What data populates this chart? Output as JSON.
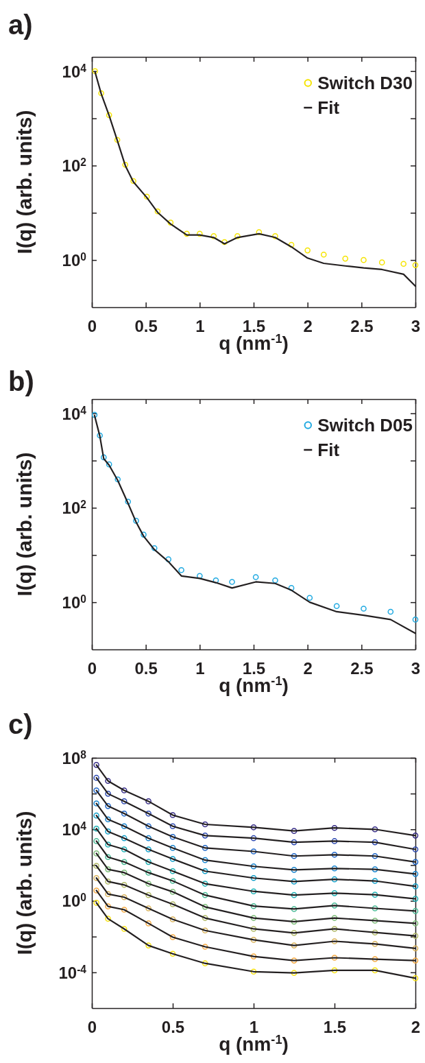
{
  "chart_data": [
    {
      "type": "scatter",
      "title": "a)",
      "xlabel": "q (nm$^{-1}$)",
      "ylabel": "I(q) (arb. units)",
      "log": "y",
      "legend": "top right",
      "marker": "circle",
      "xlim": [
        0,
        3
      ],
      "xticks": [
        0,
        0.5,
        1,
        1.5,
        2,
        2.5,
        3
      ],
      "ylim": [
        0.1,
        20000
      ],
      "yticks": [
        {
          "value": 1,
          "label": "10$^{0}$"
        },
        {
          "value": 10,
          "label": null
        },
        {
          "value": 100,
          "label": "10$^{2}$"
        },
        {
          "value": 1000,
          "label": null
        },
        {
          "value": 10000,
          "label": "10$^{4}$"
        }
      ],
      "series": [
        {
          "name": "Switch D30",
          "color": "#f5e400",
          "x": [
            0.03,
            0.087,
            0.16,
            0.236,
            0.31,
            0.385,
            0.51,
            0.61,
            0.73,
            0.88,
            1.0,
            1.13,
            1.23,
            1.35,
            1.55,
            1.7,
            1.85,
            2.0,
            2.15,
            2.35,
            2.52,
            2.69,
            2.89,
            3.0
          ],
          "values": [
            10000,
            3400,
            1170,
            350,
            104,
            47,
            22,
            10.7,
            6.2,
            3.6,
            3.6,
            3.2,
            2.4,
            3.2,
            3.9,
            3.2,
            2.1,
            1.6,
            1.3,
            1.07,
            1.0,
            0.89,
            0.83,
            0.78
          ]
        },
        {
          "name": "Fit",
          "type": "line",
          "marker": "none",
          "color": "#231f20",
          "x": [
            0.03,
            0.087,
            0.16,
            0.236,
            0.31,
            0.385,
            0.51,
            0.61,
            0.73,
            0.88,
            1.0,
            1.13,
            1.23,
            1.35,
            1.55,
            1.7,
            1.85,
            2.0,
            2.15,
            2.35,
            2.52,
            2.69,
            2.89,
            3.0
          ],
          "values": [
            9500,
            3300,
            1150,
            340,
            100,
            45,
            21,
            10.2,
            5.8,
            3.4,
            3.4,
            3.0,
            2.2,
            3.0,
            3.6,
            3.0,
            1.9,
            1.1,
            0.85,
            0.75,
            0.68,
            0.63,
            0.5,
            0.28
          ]
        }
      ]
    },
    {
      "type": "scatter",
      "title": "b)",
      "xlabel": "q (nm$^{-1}$)",
      "ylabel": "I(q) (arb. units)",
      "log": "y",
      "legend": "top right",
      "marker": "circle",
      "xlim": [
        0,
        3
      ],
      "xticks": [
        0,
        0.5,
        1,
        1.5,
        2,
        2.5,
        3
      ],
      "ylim": [
        0.1,
        20000
      ],
      "yticks": [
        {
          "value": 1,
          "label": "10$^{0}$"
        },
        {
          "value": 10,
          "label": null
        },
        {
          "value": 100,
          "label": "10$^{2}$"
        },
        {
          "value": 1000,
          "label": null
        },
        {
          "value": 10000,
          "label": "10$^{4}$"
        }
      ],
      "series": [
        {
          "name": "Switch D05",
          "color": "#1fa9e1",
          "x": [
            0.025,
            0.074,
            0.11,
            0.16,
            0.24,
            0.335,
            0.41,
            0.48,
            0.58,
            0.71,
            0.83,
            1.0,
            1.15,
            1.3,
            1.52,
            1.7,
            1.85,
            2.02,
            2.27,
            2.52,
            2.77,
            3.0
          ],
          "values": [
            9300,
            3400,
            1170,
            830,
            400,
            135,
            53,
            27,
            14,
            8.1,
            4.8,
            3.6,
            2.9,
            2.7,
            3.4,
            2.9,
            2.0,
            1.24,
            0.83,
            0.73,
            0.63,
            0.43
          ]
        },
        {
          "name": "Fit",
          "type": "line",
          "marker": "none",
          "color": "#231f20",
          "x": [
            0.025,
            0.074,
            0.11,
            0.16,
            0.24,
            0.335,
            0.41,
            0.48,
            0.58,
            0.71,
            0.83,
            1.0,
            1.15,
            1.3,
            1.52,
            1.7,
            1.85,
            2.02,
            2.27,
            2.52,
            2.77,
            3.0
          ],
          "values": [
            9000,
            3300,
            1100,
            800,
            380,
            125,
            50,
            25,
            13,
            7.2,
            3.6,
            3.2,
            2.6,
            2.0,
            2.7,
            2.5,
            1.8,
            1.0,
            0.63,
            0.53,
            0.43,
            0.22
          ]
        }
      ]
    },
    {
      "type": "scatter",
      "title": "c)",
      "xlabel": "q (nm$^{-1}$)",
      "ylabel": "I(q) (arb. units)",
      "log": "y",
      "marker": "circle",
      "xlim": [
        0,
        2
      ],
      "xticks": [
        0,
        0.5,
        1,
        1.5,
        2
      ],
      "ylim": [
        1e-06,
        100000000
      ],
      "yticks": [
        {
          "value": 0.0001,
          "label": "10$^{-4}$"
        },
        {
          "value": 0.01,
          "label": null
        },
        {
          "value": 1,
          "label": "10$^{0}$"
        },
        {
          "value": 100,
          "label": null
        },
        {
          "value": 10000,
          "label": "10$^{4}$"
        },
        {
          "value": 1000000,
          "label": null
        },
        {
          "value": 100000000,
          "label": "10$^{8}$"
        }
      ],
      "x": [
        0.028,
        0.1,
        0.2,
        0.35,
        0.5,
        0.7,
        1.0,
        1.25,
        1.5,
        1.75,
        2.0
      ],
      "series": [
        {
          "type": "scatter",
          "color": "#352a87",
          "values": [
            40000000,
            5100000,
            1500000,
            370000,
            63000,
            19000,
            13000,
            8100,
            12000,
            10000,
            4500
          ]
        },
        {
          "type": "scatter",
          "color": "#2a47b0",
          "values": [
            7600000,
            980000,
            370000,
            76000,
            15000,
            4500,
            3200,
            1900,
            2200,
            1900,
            760
          ]
        },
        {
          "type": "scatter",
          "color": "#1f66c8",
          "values": [
            1500000,
            200000,
            76000,
            15000,
            3800,
            910,
            580,
            320,
            380,
            320,
            150
          ]
        },
        {
          "type": "scatter",
          "color": "#1784cf",
          "values": [
            280000,
            36000,
            15000,
            3200,
            910,
            190,
            85,
            54,
            65,
            58,
            32
          ]
        },
        {
          "type": "scatter",
          "color": "#0d9ec9",
          "values": [
            59000,
            7600,
            3200,
            760,
            220,
            46,
            19,
            12,
            16,
            13,
            6.5
          ]
        },
        {
          "type": "scatter",
          "color": "#1cb0b4",
          "values": [
            11000,
            1400,
            760,
            150,
            46,
            9.1,
            3.4,
            2.1,
            2.7,
            2.2,
            1.3
          ]
        },
        {
          "type": "scatter",
          "color": "#46b994",
          "values": [
            2200,
            280,
            150,
            38,
            13,
            2.1,
            0.51,
            0.35,
            0.55,
            0.38,
            0.27
          ]
        },
        {
          "type": "scatter",
          "color": "#7dbd78",
          "values": [
            450,
            58,
            38,
            9.1,
            3.2,
            0.46,
            0.11,
            0.069,
            0.11,
            0.078,
            0.055
          ]
        },
        {
          "type": "scatter",
          "color": "#b0b864",
          "values": [
            91,
            12,
            7.8,
            2.1,
            0.65,
            0.11,
            0.027,
            0.016,
            0.027,
            0.017,
            0.011
          ]
        },
        {
          "type": "scatter",
          "color": "#d9b25a",
          "values": [
            19,
            2.4,
            1.6,
            0.38,
            0.093,
            0.022,
            0.0066,
            0.0032,
            0.0055,
            0.0039,
            0.0022
          ]
        },
        {
          "type": "scatter",
          "color": "#f5a940",
          "values": [
            3.8,
            0.49,
            0.32,
            0.055,
            0.0093,
            0.0027,
            0.00078,
            0.00046,
            0.00066,
            0.00055,
            0.00046
          ]
        },
        {
          "type": "scatter",
          "color": "#f7e10d",
          "values": [
            0.78,
            0.1,
            0.027,
            0.0032,
            0.0011,
            0.00032,
            0.00011,
            9.3e-05,
            0.00013,
            0.00013,
            4.7e-05
          ]
        },
        {
          "type": "line",
          "marker": "none",
          "color": "#231f20",
          "values": [
            40000000,
            5100000,
            1500000,
            370000,
            63000,
            19000,
            13000,
            8100,
            12000,
            10000,
            4500
          ]
        },
        {
          "type": "line",
          "marker": "none",
          "color": "#231f20",
          "values": [
            7600000,
            980000,
            370000,
            76000,
            15000,
            4500,
            3200,
            1900,
            2200,
            1900,
            760
          ]
        },
        {
          "type": "line",
          "marker": "none",
          "color": "#231f20",
          "values": [
            1500000,
            200000,
            76000,
            15000,
            3800,
            910,
            580,
            320,
            380,
            320,
            150
          ]
        },
        {
          "type": "line",
          "marker": "none",
          "color": "#231f20",
          "values": [
            280000,
            36000,
            15000,
            3200,
            910,
            190,
            85,
            54,
            65,
            58,
            32
          ]
        },
        {
          "type": "line",
          "marker": "none",
          "color": "#231f20",
          "values": [
            59000,
            7600,
            3200,
            760,
            220,
            46,
            19,
            12,
            16,
            13,
            6.5
          ]
        },
        {
          "type": "line",
          "marker": "none",
          "color": "#231f20",
          "values": [
            11000,
            1400,
            760,
            150,
            46,
            9.1,
            3.4,
            2.1,
            2.7,
            2.2,
            1.3
          ]
        },
        {
          "type": "line",
          "marker": "none",
          "color": "#231f20",
          "values": [
            2200,
            280,
            150,
            38,
            13,
            2.1,
            0.51,
            0.35,
            0.55,
            0.38,
            0.27
          ]
        },
        {
          "type": "line",
          "marker": "none",
          "color": "#231f20",
          "values": [
            450,
            58,
            38,
            9.1,
            3.2,
            0.46,
            0.11,
            0.069,
            0.11,
            0.078,
            0.055
          ]
        },
        {
          "type": "line",
          "marker": "none",
          "color": "#231f20",
          "values": [
            91,
            12,
            7.8,
            2.1,
            0.65,
            0.11,
            0.027,
            0.016,
            0.027,
            0.017,
            0.011
          ]
        },
        {
          "type": "line",
          "marker": "none",
          "color": "#231f20",
          "values": [
            19,
            2.4,
            1.6,
            0.38,
            0.093,
            0.022,
            0.0066,
            0.0032,
            0.0055,
            0.0039,
            0.0022
          ]
        },
        {
          "type": "line",
          "marker": "none",
          "color": "#231f20",
          "values": [
            3.8,
            0.49,
            0.32,
            0.055,
            0.0093,
            0.0027,
            0.00078,
            0.00046,
            0.00066,
            0.00055,
            0.00046
          ]
        },
        {
          "type": "line",
          "marker": "none",
          "color": "#231f20",
          "values": [
            0.78,
            0.1,
            0.027,
            0.0032,
            0.0011,
            0.00032,
            0.00011,
            9.3e-05,
            0.00013,
            0.00013,
            4.7e-05
          ]
        }
      ]
    }
  ]
}
